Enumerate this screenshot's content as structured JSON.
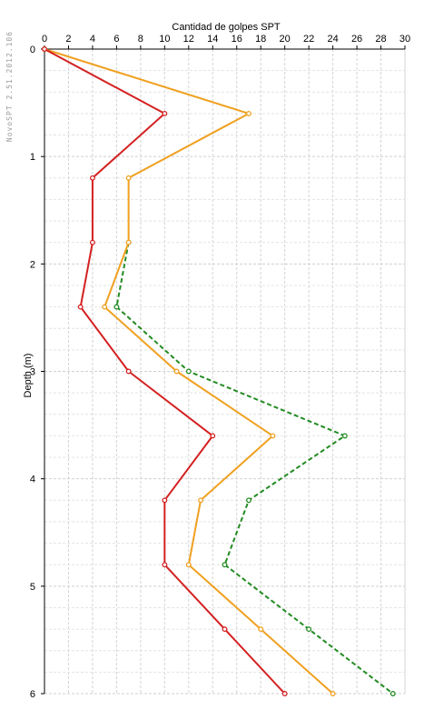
{
  "watermark": "NovoSPT 2.51.2012.106",
  "chart_data": {
    "type": "line",
    "orientation": "depth-profile",
    "xlabel": "Cantidad de golpes SPT",
    "ylabel": "Depth (m)",
    "xlim": [
      0,
      30
    ],
    "ylim": [
      0,
      6
    ],
    "y_inverted": true,
    "x_axis_position": "top",
    "grid": true,
    "x_ticks": [
      "0",
      "2",
      "4",
      "6",
      "8",
      "10",
      "12",
      "14",
      "16",
      "18",
      "20",
      "22",
      "24",
      "26",
      "28",
      "30"
    ],
    "y_ticks": [
      "0",
      "1",
      "2",
      "3",
      "4",
      "5",
      "6"
    ],
    "series": [
      {
        "color": "#228B22",
        "line_style": "dashed",
        "points": [
          {
            "x": 7,
            "y": 1.8
          },
          {
            "x": 6,
            "y": 2.4
          },
          {
            "x": 12,
            "y": 3.0
          },
          {
            "x": 25,
            "y": 3.6
          },
          {
            "x": 17,
            "y": 4.2
          },
          {
            "x": 15,
            "y": 4.8
          },
          {
            "x": 22,
            "y": 5.4
          },
          {
            "x": 29,
            "y": 6.0
          }
        ]
      },
      {
        "color": "#F0A020",
        "line_style": "solid",
        "points": [
          {
            "x": 0,
            "y": 0.0
          },
          {
            "x": 17,
            "y": 0.6
          },
          {
            "x": 7,
            "y": 1.2
          },
          {
            "x": 7,
            "y": 1.8
          },
          {
            "x": 5,
            "y": 2.4
          },
          {
            "x": 11,
            "y": 3.0
          },
          {
            "x": 19,
            "y": 3.6
          },
          {
            "x": 13,
            "y": 4.2
          },
          {
            "x": 12,
            "y": 4.8
          },
          {
            "x": 18,
            "y": 5.4
          },
          {
            "x": 24,
            "y": 6.0
          }
        ]
      },
      {
        "color": "#D42020",
        "line_style": "solid",
        "points": [
          {
            "x": 0,
            "y": 0.0
          },
          {
            "x": 10,
            "y": 0.6
          },
          {
            "x": 4,
            "y": 1.2
          },
          {
            "x": 4,
            "y": 1.8
          },
          {
            "x": 3,
            "y": 2.4
          },
          {
            "x": 7,
            "y": 3.0
          },
          {
            "x": 14,
            "y": 3.6
          },
          {
            "x": 10,
            "y": 4.2
          },
          {
            "x": 10,
            "y": 4.8
          },
          {
            "x": 15,
            "y": 5.4
          },
          {
            "x": 20,
            "y": 6.0
          }
        ]
      }
    ]
  }
}
